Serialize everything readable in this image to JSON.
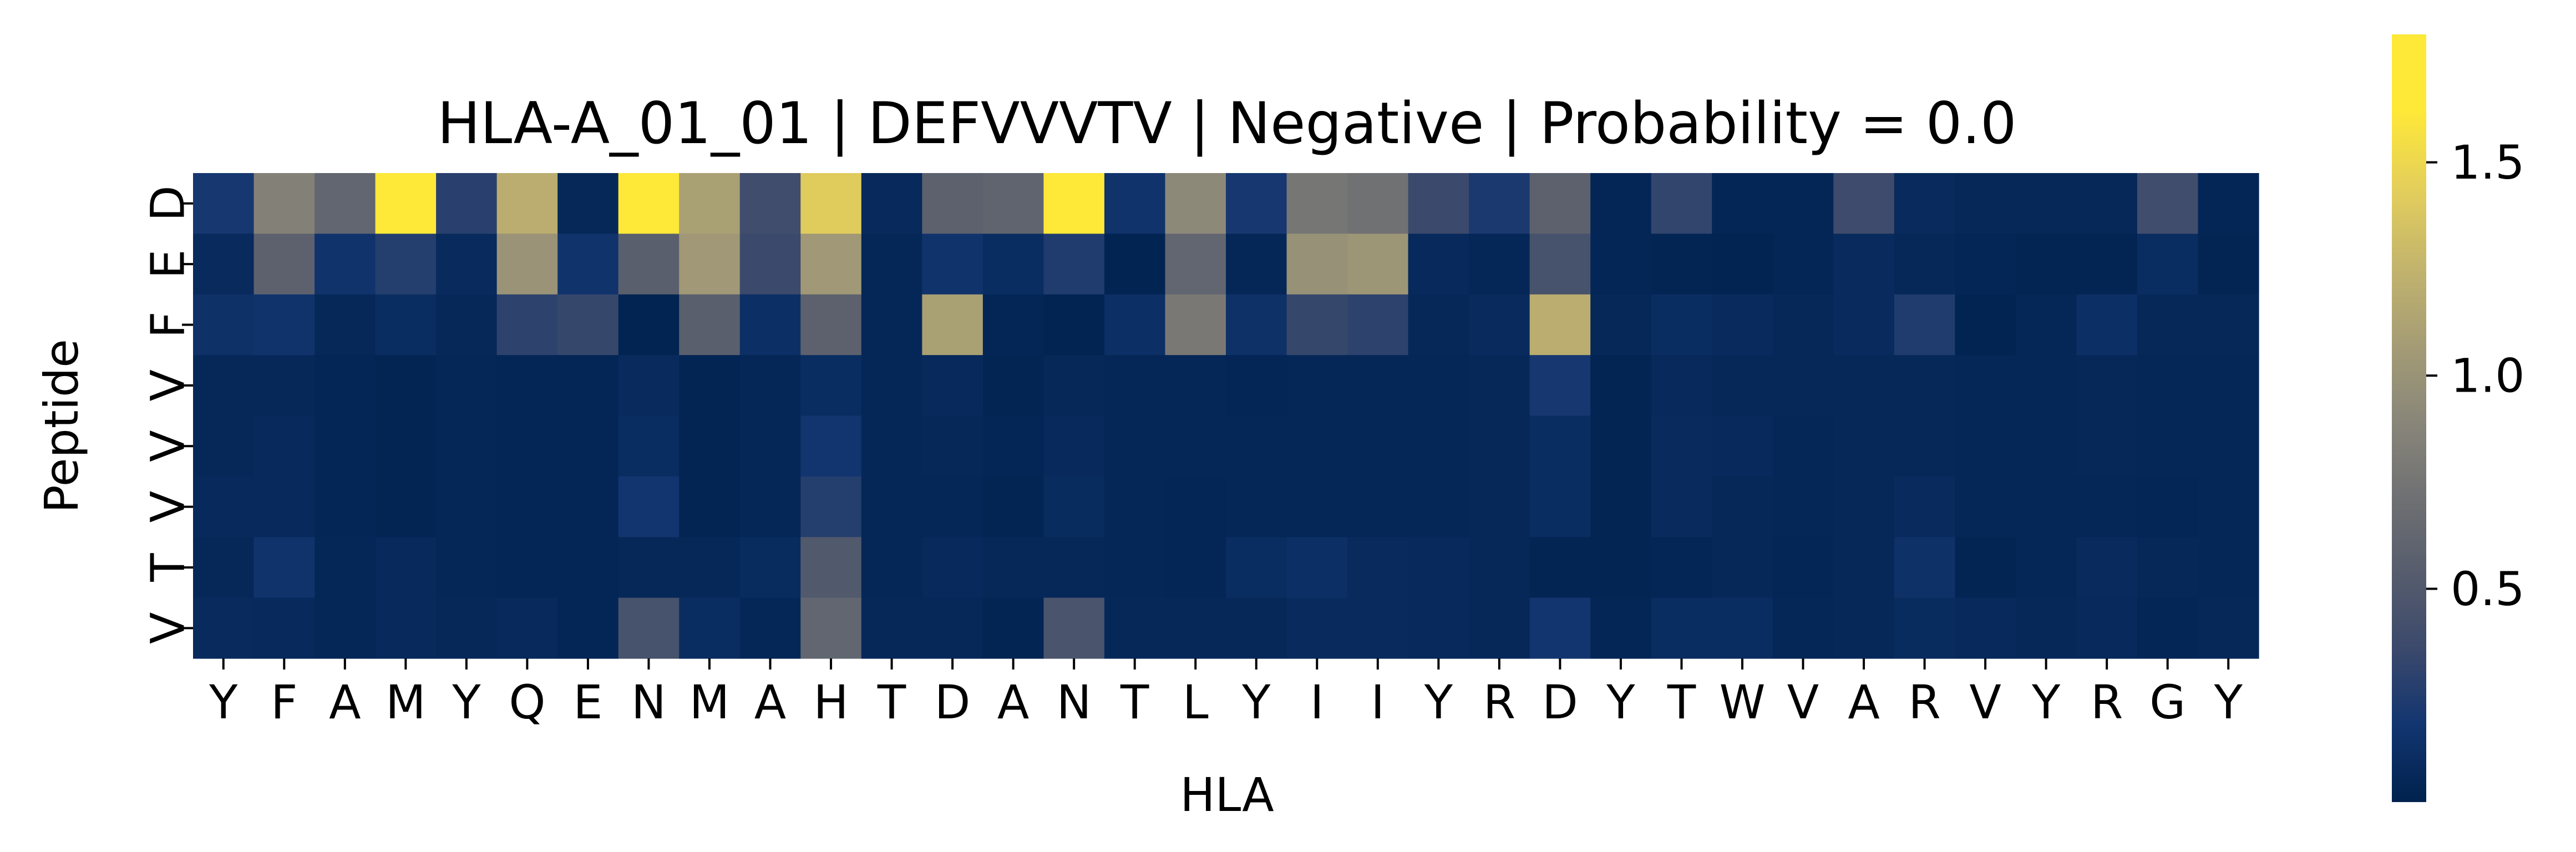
{
  "chart_data": {
    "type": "heatmap",
    "title": "HLA-A_01_01 | DEFVVVTV | Negative | Probability = 0.0",
    "xlabel": "HLA",
    "ylabel": "Peptide",
    "x_categories": [
      "Y",
      "F",
      "A",
      "M",
      "Y",
      "Q",
      "E",
      "N",
      "M",
      "A",
      "H",
      "T",
      "D",
      "A",
      "N",
      "T",
      "L",
      "Y",
      "I",
      "I",
      "Y",
      "R",
      "D",
      "Y",
      "T",
      "W",
      "V",
      "A",
      "R",
      "V",
      "Y",
      "R",
      "G",
      "Y"
    ],
    "y_categories": [
      "D",
      "E",
      "F",
      "V",
      "V",
      "V",
      "T",
      "V"
    ],
    "colormap": "cividis",
    "value_range": [
      0.0,
      1.8
    ],
    "colorbar_ticks": [
      {
        "value": 0.5,
        "label": "0.5"
      },
      {
        "value": 1.0,
        "label": "1.0"
      },
      {
        "value": 1.5,
        "label": "1.5"
      }
    ],
    "values": [
      [
        0.2,
        0.85,
        0.62,
        1.72,
        0.28,
        1.2,
        0.06,
        1.68,
        1.1,
        0.4,
        1.42,
        0.07,
        0.58,
        0.6,
        1.8,
        0.16,
        0.92,
        0.2,
        0.76,
        0.72,
        0.36,
        0.22,
        0.58,
        0.04,
        0.32,
        0.04,
        0.04,
        0.38,
        0.08,
        0.06,
        0.06,
        0.06,
        0.4,
        0.04
      ],
      [
        0.08,
        0.58,
        0.16,
        0.26,
        0.08,
        1.0,
        0.16,
        0.56,
        1.04,
        0.36,
        1.04,
        0.05,
        0.16,
        0.1,
        0.24,
        0.02,
        0.62,
        0.05,
        0.98,
        1.02,
        0.07,
        0.05,
        0.44,
        0.04,
        0.03,
        0.02,
        0.04,
        0.08,
        0.06,
        0.04,
        0.03,
        0.03,
        0.1,
        0.03
      ],
      [
        0.14,
        0.16,
        0.06,
        0.1,
        0.06,
        0.3,
        0.34,
        0.02,
        0.56,
        0.12,
        0.58,
        0.05,
        1.1,
        0.04,
        0.02,
        0.12,
        0.78,
        0.14,
        0.34,
        0.3,
        0.06,
        0.08,
        1.2,
        0.06,
        0.1,
        0.08,
        0.06,
        0.08,
        0.24,
        0.02,
        0.05,
        0.12,
        0.06,
        0.06
      ],
      [
        0.06,
        0.06,
        0.04,
        0.03,
        0.05,
        0.04,
        0.04,
        0.08,
        0.03,
        0.05,
        0.1,
        0.05,
        0.07,
        0.03,
        0.06,
        0.05,
        0.05,
        0.04,
        0.05,
        0.05,
        0.05,
        0.06,
        0.2,
        0.03,
        0.07,
        0.06,
        0.06,
        0.06,
        0.06,
        0.05,
        0.05,
        0.06,
        0.05,
        0.05
      ],
      [
        0.06,
        0.07,
        0.04,
        0.03,
        0.05,
        0.04,
        0.04,
        0.1,
        0.03,
        0.05,
        0.18,
        0.05,
        0.06,
        0.04,
        0.07,
        0.05,
        0.05,
        0.05,
        0.05,
        0.05,
        0.05,
        0.06,
        0.1,
        0.03,
        0.08,
        0.07,
        0.05,
        0.06,
        0.06,
        0.05,
        0.05,
        0.06,
        0.05,
        0.05
      ],
      [
        0.07,
        0.07,
        0.04,
        0.03,
        0.05,
        0.04,
        0.04,
        0.18,
        0.03,
        0.05,
        0.26,
        0.05,
        0.05,
        0.03,
        0.09,
        0.05,
        0.04,
        0.05,
        0.05,
        0.05,
        0.05,
        0.06,
        0.1,
        0.03,
        0.08,
        0.06,
        0.05,
        0.06,
        0.08,
        0.05,
        0.05,
        0.05,
        0.04,
        0.05
      ],
      [
        0.06,
        0.16,
        0.05,
        0.07,
        0.05,
        0.04,
        0.04,
        0.06,
        0.06,
        0.09,
        0.5,
        0.05,
        0.07,
        0.06,
        0.06,
        0.05,
        0.04,
        0.1,
        0.12,
        0.08,
        0.07,
        0.06,
        0.03,
        0.03,
        0.04,
        0.06,
        0.04,
        0.06,
        0.14,
        0.03,
        0.05,
        0.08,
        0.06,
        0.05
      ],
      [
        0.08,
        0.07,
        0.05,
        0.07,
        0.06,
        0.07,
        0.04,
        0.44,
        0.1,
        0.05,
        0.62,
        0.06,
        0.06,
        0.03,
        0.46,
        0.06,
        0.06,
        0.06,
        0.08,
        0.08,
        0.07,
        0.06,
        0.18,
        0.04,
        0.1,
        0.1,
        0.05,
        0.06,
        0.09,
        0.07,
        0.06,
        0.07,
        0.04,
        0.06
      ]
    ]
  }
}
